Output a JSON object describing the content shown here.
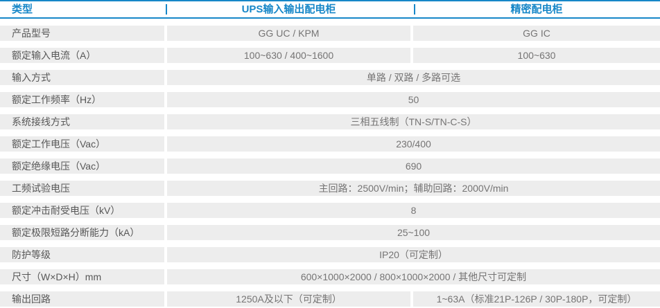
{
  "header": {
    "type_label": "类型",
    "ups_label": "UPS输入输出配电柜",
    "precision_label": "精密配电柜"
  },
  "accent_color": "#1787c8",
  "row_bg_color": "#ededed",
  "rows": [
    {
      "label": "产品型号",
      "merged": false,
      "col2": "GG UC / KPM",
      "col3": "GG IC"
    },
    {
      "label": "额定输入电流（A）",
      "merged": false,
      "col2": "100~630 / 400~1600",
      "col3": "100~630"
    },
    {
      "label": "输入方式",
      "merged": true,
      "value": "单路 / 双路 / 多路可选"
    },
    {
      "label": "额定工作频率（Hz）",
      "merged": true,
      "value": "50"
    },
    {
      "label": "系统接线方式",
      "merged": true,
      "value": "三相五线制（TN-S/TN-C-S）"
    },
    {
      "label": "额定工作电压（Vac）",
      "merged": true,
      "value": "230/400"
    },
    {
      "label": "额定绝缘电压（Vac）",
      "merged": true,
      "value": "690"
    },
    {
      "label": "工频试验电压",
      "merged": true,
      "value": "主回路：2500V/min；辅助回路：2000V/min"
    },
    {
      "label": "额定冲击耐受电压（kV）",
      "merged": true,
      "value": "8"
    },
    {
      "label": "额定极限短路分断能力（kA）",
      "merged": true,
      "value": "25~100"
    },
    {
      "label": "防护等级",
      "merged": true,
      "value": "IP20（可定制）"
    },
    {
      "label": "尺寸（W×D×H）mm",
      "merged": true,
      "value": "600×1000×2000 / 800×1000×2000 / 其他尺寸可定制"
    },
    {
      "label": "输出回路",
      "merged": false,
      "col2": "1250A及以下（可定制）",
      "col3": "1~63A（标准21P-126P / 30P-180P，可定制）"
    }
  ]
}
